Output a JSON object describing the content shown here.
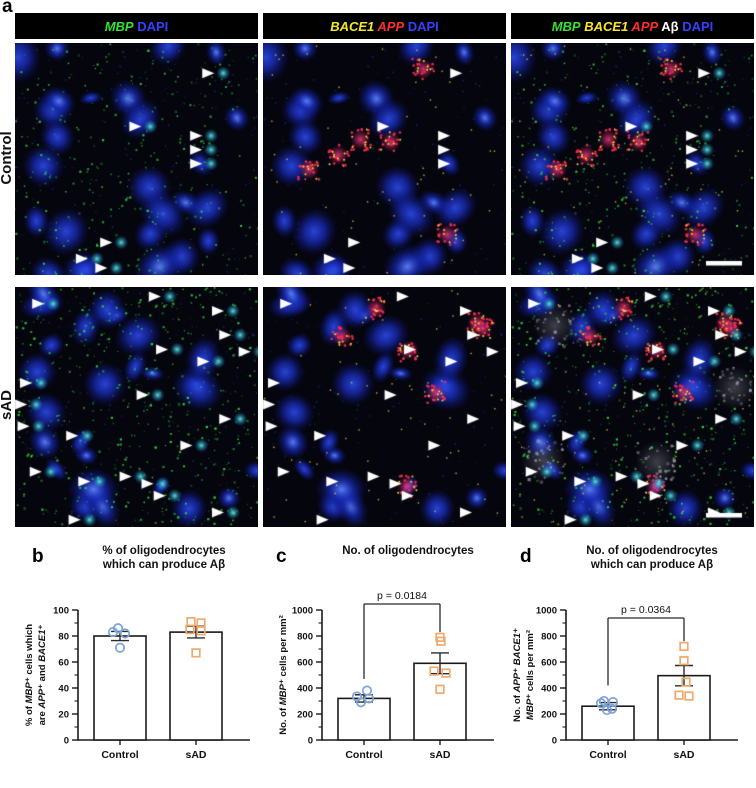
{
  "figure": {
    "panel_letters": {
      "a": "a",
      "b": "b",
      "c": "c",
      "d": "d"
    }
  },
  "microscopy": {
    "row_labels": [
      "Control",
      "sAD"
    ],
    "column_headers": [
      {
        "segments": [
          {
            "text": "MBP",
            "color": "#35e235",
            "italic": true
          },
          {
            "text": " DAPI",
            "color": "#3340ff",
            "italic": false
          }
        ]
      },
      {
        "segments": [
          {
            "text": "BACE1",
            "color": "#f5e72a",
            "italic": true
          },
          {
            "text": " APP",
            "color": "#ff2e2e",
            "italic": true
          },
          {
            "text": " DAPI",
            "color": "#3340ff",
            "italic": false
          }
        ]
      },
      {
        "segments": [
          {
            "text": "MBP",
            "color": "#35e235",
            "italic": true
          },
          {
            "text": " BACE1",
            "color": "#f5e72a",
            "italic": true
          },
          {
            "text": " APP",
            "color": "#ff2e2e",
            "italic": true
          },
          {
            "text": " Aβ",
            "color": "#ffffff",
            "italic": false
          },
          {
            "text": " DAPI",
            "color": "#3340ff",
            "italic": false
          }
        ]
      }
    ],
    "arrow_marks": {
      "Control": [
        [
          0.82,
          0.13
        ],
        [
          0.52,
          0.36
        ],
        [
          0.77,
          0.4
        ],
        [
          0.77,
          0.46
        ],
        [
          0.77,
          0.52
        ],
        [
          0.4,
          0.86
        ],
        [
          0.3,
          0.93
        ],
        [
          0.38,
          0.97
        ]
      ],
      "sAD": [
        [
          0.12,
          0.07
        ],
        [
          0.6,
          0.04
        ],
        [
          0.86,
          0.1
        ],
        [
          0.89,
          0.2
        ],
        [
          0.63,
          0.26
        ],
        [
          0.97,
          0.27
        ],
        [
          0.8,
          0.31
        ],
        [
          0.07,
          0.4
        ],
        [
          0.55,
          0.45
        ],
        [
          0.05,
          0.49
        ],
        [
          0.06,
          0.58
        ],
        [
          0.26,
          0.62
        ],
        [
          0.89,
          0.55
        ],
        [
          0.73,
          0.66
        ],
        [
          0.11,
          0.77
        ],
        [
          0.31,
          0.81
        ],
        [
          0.48,
          0.79
        ],
        [
          0.57,
          0.82
        ],
        [
          0.62,
          0.87
        ],
        [
          0.27,
          0.97
        ],
        [
          0.86,
          0.94
        ]
      ]
    }
  },
  "style": {
    "control_point_color": "#7da3d8",
    "sad_point_color": "#f0a96c",
    "bar_fill": "#ffffff",
    "bar_stroke": "#1a1a1a"
  },
  "chart_data": [
    {
      "panel": "b",
      "type": "bar",
      "title_lines": [
        "% of oligodendrocytes",
        "which can produce Aβ"
      ],
      "ylabel_lines": [
        [
          {
            "t": "% of "
          },
          {
            "t": "MBP",
            "i": true
          },
          {
            "t": "⁺ cells which"
          }
        ],
        [
          {
            "t": "are "
          },
          {
            "t": "APP",
            "i": true
          },
          {
            "t": "⁺ and "
          },
          {
            "t": "BACE1",
            "i": true
          },
          {
            "t": "⁺"
          }
        ]
      ],
      "categories": [
        "Control",
        "sAD"
      ],
      "means": [
        80,
        83
      ],
      "sem": [
        3.5,
        4.5
      ],
      "points": {
        "Control": [
          86,
          83,
          82,
          71
        ],
        "sAD": [
          91,
          90,
          85,
          84,
          67
        ]
      },
      "ylim": [
        0,
        100
      ],
      "ytick_step": 20,
      "yminor_step": 10,
      "p_value": null,
      "bracket": null
    },
    {
      "panel": "c",
      "type": "bar",
      "title_lines": [
        "No. of oligodendrocytes"
      ],
      "ylabel_lines": [
        [
          {
            "t": "No. of "
          },
          {
            "t": "MBP",
            "i": true
          },
          {
            "t": "⁺ cells per mm²"
          }
        ]
      ],
      "categories": [
        "Control",
        "sAD"
      ],
      "means": [
        320,
        590
      ],
      "sem": [
        28,
        80
      ],
      "points": {
        "Control": [
          380,
          335,
          320,
          290
        ],
        "sAD": [
          790,
          760,
          530,
          515,
          390
        ]
      },
      "ylim": [
        0,
        1000
      ],
      "ytick_step": 200,
      "yminor_step": 100,
      "p_value": "p = 0.0184",
      "bracket": {
        "left_drop": 470,
        "right_drop": 830
      }
    },
    {
      "panel": "d",
      "type": "bar",
      "title_lines": [
        "No. of oligodendrocytes",
        "which can produce Aβ"
      ],
      "ylabel_lines": [
        [
          {
            "t": "No. of "
          },
          {
            "t": "APP",
            "i": true
          },
          {
            "t": "⁺ "
          },
          {
            "t": "BACE1",
            "i": true
          },
          {
            "t": "⁺"
          }
        ],
        [
          {
            "t": "MBP",
            "i": true
          },
          {
            "t": "⁺ cells per mm²"
          }
        ]
      ],
      "categories": [
        "Control",
        "sAD"
      ],
      "means": [
        260,
        495
      ],
      "sem": [
        28,
        78
      ],
      "points": {
        "Control": [
          300,
          292,
          283,
          240,
          230
        ],
        "sAD": [
          720,
          610,
          445,
          345,
          338
        ]
      },
      "ylim": [
        0,
        1000
      ],
      "ytick_step": 200,
      "yminor_step": 100,
      "p_value": "p = 0.0364",
      "bracket": {
        "left_drop": 420,
        "right_drop": 760
      }
    }
  ]
}
